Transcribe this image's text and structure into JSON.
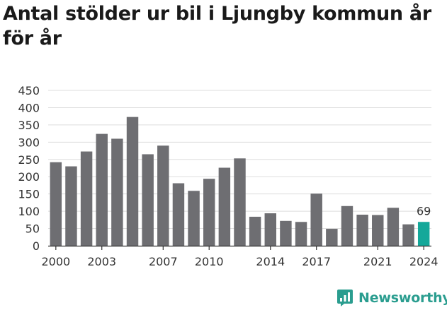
{
  "chart_data": {
    "type": "bar",
    "title": "Antal stölder ur bil i Ljungby kommun år för år",
    "years": [
      2000,
      2001,
      2002,
      2003,
      2004,
      2005,
      2006,
      2007,
      2008,
      2009,
      2010,
      2011,
      2012,
      2013,
      2014,
      2015,
      2016,
      2017,
      2018,
      2019,
      2020,
      2021,
      2022,
      2023,
      2024
    ],
    "values": [
      242,
      230,
      273,
      324,
      310,
      373,
      265,
      290,
      181,
      159,
      194,
      226,
      253,
      84,
      94,
      72,
      69,
      151,
      49,
      115,
      90,
      89,
      110,
      62,
      69
    ],
    "x_tick_labels": [
      "2000",
      "2003",
      "2007",
      "2010",
      "2014",
      "2017",
      "2021",
      "2024"
    ],
    "y_ticks": [
      0,
      50,
      100,
      150,
      200,
      250,
      300,
      350,
      400,
      450
    ],
    "ylim": [
      0,
      450
    ],
    "grid": true,
    "highlight": {
      "year": 2024,
      "label": "69"
    },
    "colors": {
      "bar": "#6e6e72",
      "highlight": "#14a89a",
      "grid": "#dddddd",
      "axis": "#333333",
      "text": "#333333"
    }
  },
  "brand": {
    "name": "Newsworthy",
    "color": "#2a9d8f",
    "icon": "chart-bubble-icon"
  }
}
